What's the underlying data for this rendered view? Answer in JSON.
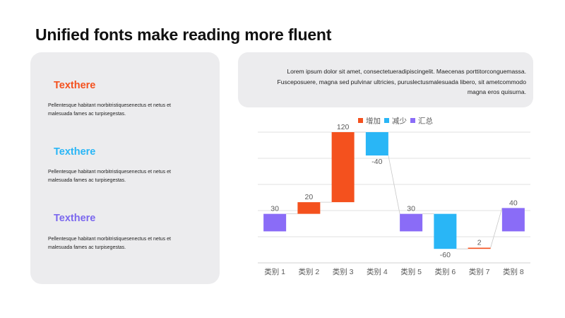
{
  "page": {
    "title": "Unified fonts make reading more fluent"
  },
  "left_panel": {
    "sections": [
      {
        "heading": "Texthere",
        "heading_color": "#f4511e",
        "body": "Pellentesque habitant morbitristiquesenectus et netus et malesuada fames ac turpisegestas."
      },
      {
        "heading": "Texthere",
        "heading_color": "#29b6f6",
        "body": "Pellentesque habitant morbitristiquesenectus et netus et malesuada fames ac turpisegestas."
      },
      {
        "heading": "Texthere",
        "heading_color": "#7b68ee",
        "body": "Pellentesque habitant morbitristiquesenectus et netus et malesuada fames ac turpisegestas."
      }
    ]
  },
  "quote_panel": {
    "text": "Lorem ipsum dolor sit amet, consectetueradipiscingelit. Maecenas porttitorconguemassa. Fusceposuere, magna sed pulvinar ultricies, puruslectusmalesuada libero, sit ametcommodo magna eros quisurna."
  },
  "chart_data": {
    "type": "bar",
    "subtype": "waterfall",
    "categories": [
      "类别 1",
      "类别 2",
      "类别 3",
      "类别 4",
      "类别 5",
      "类别 6",
      "类别 7",
      "类别 8"
    ],
    "values": [
      30,
      20,
      120,
      -40,
      30,
      -60,
      2,
      40
    ],
    "data_labels": [
      "30",
      "20",
      "120",
      "-40",
      "30",
      "-60",
      "2",
      "40"
    ],
    "kinds": [
      "total",
      "increase",
      "increase",
      "decrease",
      "total",
      "decrease",
      "increase",
      "total"
    ],
    "legend": [
      {
        "name": "增加",
        "color": "#f4511e"
      },
      {
        "name": "减少",
        "color": "#29b6f6"
      },
      {
        "name": "汇总",
        "color": "#8a6cf7"
      }
    ],
    "legend_position": "top",
    "grid": true,
    "connector_lines": true
  }
}
